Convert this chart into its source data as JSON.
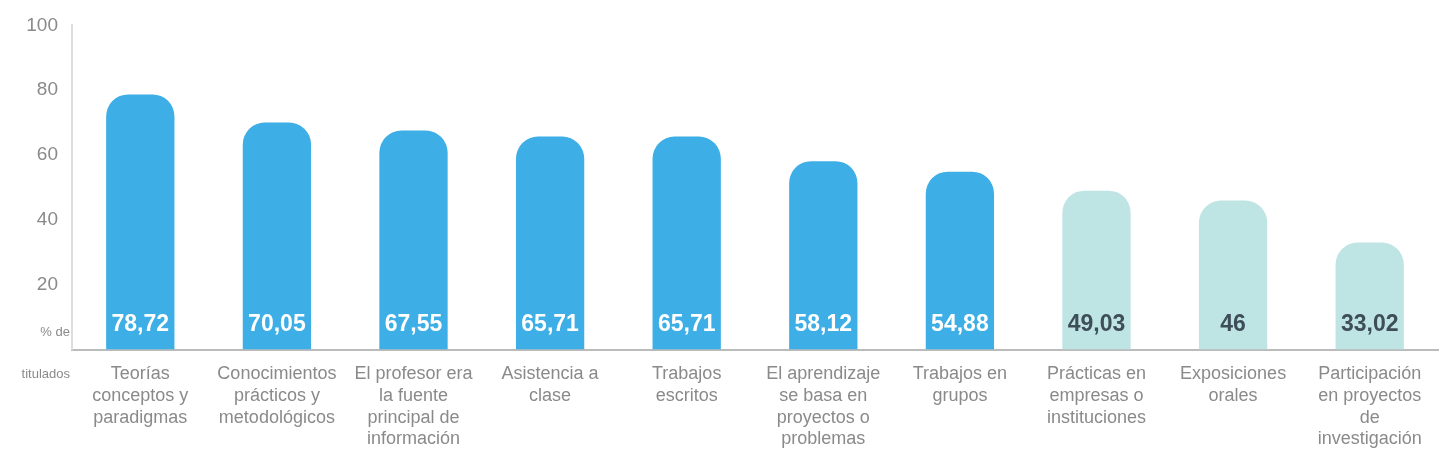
{
  "chart_data": {
    "type": "bar",
    "ylabel": "% de titulados",
    "categories": [
      "Teorías conceptos y paradigmas",
      "Conocimientos prácticos y metodológicos",
      "El profesor era la fuente principal de información",
      "Asistencia a clase",
      "Trabajos escritos",
      "El aprendizaje se basa en proyectos o problemas",
      "Trabajos en grupos",
      "Prácticas en empresas o instituciones",
      "Exposiciones orales",
      "Participación en proyectos de investigación"
    ],
    "values": [
      78.72,
      70.05,
      67.55,
      65.71,
      65.71,
      58.12,
      54.88,
      49.03,
      46,
      33.02
    ],
    "value_labels": [
      "78,72",
      "70,05",
      "67,55",
      "65,71",
      "65,71",
      "58,12",
      "54,88",
      "49,03",
      "46",
      "33,02"
    ],
    "colors": [
      "#3daee6",
      "#3daee6",
      "#3daee6",
      "#3daee6",
      "#3daee6",
      "#3daee6",
      "#3daee6",
      "#bfe4e4",
      "#bfe4e4",
      "#bfe4e4"
    ],
    "ylim": [
      0,
      100
    ],
    "yticks": [
      20,
      40,
      60,
      80,
      100
    ],
    "grid": false,
    "legend": false
  }
}
